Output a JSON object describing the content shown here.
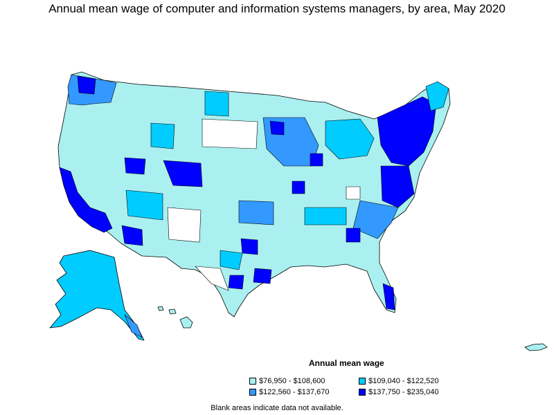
{
  "title": "Annual mean wage of computer and information systems managers, by area, May 2020",
  "legend": {
    "title": "Annual mean wage",
    "items": [
      {
        "label": "$76,950 - $108,600",
        "color": "#aaf0f0"
      },
      {
        "label": "$109,040 - $122,520",
        "color": "#00ccff"
      },
      {
        "label": "$122,560 - $137,670",
        "color": "#3399ff"
      },
      {
        "label": "$137,750 - $235,040",
        "color": "#0000ff"
      }
    ]
  },
  "note": "Blank areas indicate data not available."
}
